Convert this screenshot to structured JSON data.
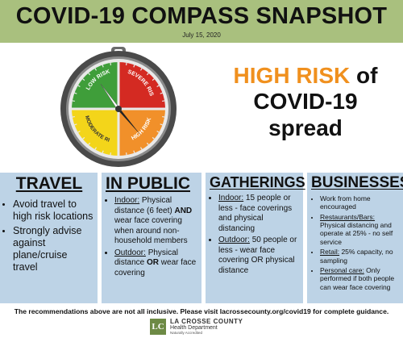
{
  "header": {
    "title": "COVID-19 COMPASS SNAPSHOT",
    "date": "July 15, 2020",
    "bg_color": "#a9c07e"
  },
  "compass": {
    "quadrants": [
      {
        "label": "LOW RISK",
        "color": "#3f9e3a"
      },
      {
        "label": "SEVERE RISK",
        "color": "#d42a22"
      },
      {
        "label": "MODERATE RISK",
        "color": "#f3d51a"
      },
      {
        "label": "HIGH RISK",
        "color": "#f1902a"
      }
    ],
    "needle_points_to": "HIGH RISK"
  },
  "risk_statement": {
    "highlight": "HIGH RISK",
    "word_of": "of",
    "line2": "COVID-19",
    "line3": "spread",
    "highlight_color": "#f0901e"
  },
  "columns": {
    "travel": {
      "heading": "TRAVEL",
      "items": [
        {
          "text": "Avoid travel to high risk locations"
        },
        {
          "text": "Strongly advise against plane/cruise travel"
        }
      ]
    },
    "in_public": {
      "heading": "IN PUBLIC",
      "items": [
        {
          "label": "Indoor:",
          "text": " Physical distance (6 feet) ",
          "bold": "AND",
          "text2": " wear face covering when around non-household members"
        },
        {
          "label": "Outdoor:",
          "text": " Physical distance ",
          "bold": "OR",
          "text2": " wear face covering"
        }
      ]
    },
    "gatherings": {
      "heading": "GATHERINGS",
      "items": [
        {
          "label": "Indoor:",
          "text": " 15 people or less - face coverings and physical distancing"
        },
        {
          "label": "Outdoor:",
          "text": " 50 people or less - wear face covering OR physical distance"
        }
      ]
    },
    "businesses": {
      "heading": "BUSINESSES",
      "items": [
        {
          "label": "",
          "text": "Work from home encouraged"
        },
        {
          "label": "Restaurants/Bars:",
          "text": " Physical distancing and operate at 25% - no self service"
        },
        {
          "label": "Retail:",
          "text": " 25% capacity, no sampling"
        },
        {
          "label": "Personal care:",
          "text": " Only performed if both people can wear face covering"
        }
      ]
    },
    "bg_color": "#bdd3e6"
  },
  "footer": {
    "text": "The recommendations above are not all inclusive.  Please visit lacrossecounty.org/covid19 for complete guidance.",
    "logo_mark": "LC",
    "org_name": "LA CROSSE COUNTY",
    "dept_name": "Health Department",
    "tagline": "Naturally Accredited"
  }
}
